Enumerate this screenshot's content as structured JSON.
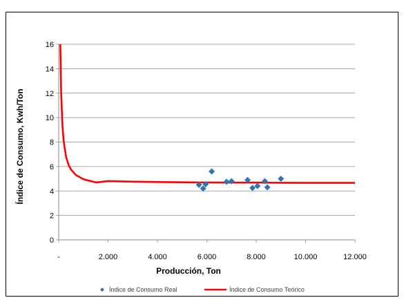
{
  "chart_data": {
    "type": "scatter",
    "title": "",
    "xlabel": "Producción, Ton",
    "ylabel": "Índice de Consumo, Kwh/Ton",
    "xlim": [
      0,
      12000
    ],
    "ylim": [
      0,
      16
    ],
    "x_ticks": [
      0,
      2000,
      4000,
      6000,
      8000,
      10000,
      12000
    ],
    "x_tick_labels": [
      "-",
      "2.000",
      "4.000",
      "6.000",
      "8.000",
      "10.000",
      "12.000"
    ],
    "y_ticks": [
      0,
      2,
      4,
      6,
      8,
      10,
      12,
      14,
      16
    ],
    "y_tick_labels": [
      "0",
      "2",
      "4",
      "6",
      "8",
      "10",
      "12",
      "14",
      "16"
    ],
    "grid": "horizontal",
    "legend_position": "bottom",
    "series": [
      {
        "name": "Índice de Consumo Real",
        "kind": "scatter",
        "marker": "diamond",
        "color": "#2E75B6",
        "points": [
          {
            "x": 5680,
            "y": 4.5
          },
          {
            "x": 5850,
            "y": 4.2
          },
          {
            "x": 5950,
            "y": 4.55
          },
          {
            "x": 6200,
            "y": 5.6
          },
          {
            "x": 6800,
            "y": 4.75
          },
          {
            "x": 7000,
            "y": 4.8
          },
          {
            "x": 7650,
            "y": 4.9
          },
          {
            "x": 7850,
            "y": 4.25
          },
          {
            "x": 8050,
            "y": 4.4
          },
          {
            "x": 8350,
            "y": 4.8
          },
          {
            "x": 8450,
            "y": 4.3
          },
          {
            "x": 9000,
            "y": 5.0
          }
        ]
      },
      {
        "name": "Índice de Consumo Teórico",
        "kind": "line",
        "color": "#FF0000",
        "points": [
          {
            "x": 65,
            "y": 16.0
          },
          {
            "x": 100,
            "y": 11.96
          },
          {
            "x": 150,
            "y": 9.37
          },
          {
            "x": 200,
            "y": 8.07
          },
          {
            "x": 300,
            "y": 6.78
          },
          {
            "x": 400,
            "y": 6.13
          },
          {
            "x": 500,
            "y": 5.74
          },
          {
            "x": 700,
            "y": 5.3
          },
          {
            "x": 1000,
            "y": 4.96
          },
          {
            "x": 1500,
            "y": 4.7
          },
          {
            "x": 2000,
            "y": 4.8
          },
          {
            "x": 3000,
            "y": 4.76
          },
          {
            "x": 4000,
            "y": 4.73
          },
          {
            "x": 5000,
            "y": 4.71
          },
          {
            "x": 6000,
            "y": 4.69
          },
          {
            "x": 7000,
            "y": 4.68
          },
          {
            "x": 8000,
            "y": 4.68
          },
          {
            "x": 9000,
            "y": 4.67
          },
          {
            "x": 10000,
            "y": 4.66
          },
          {
            "x": 11000,
            "y": 4.66
          },
          {
            "x": 12000,
            "y": 4.66
          }
        ]
      }
    ]
  }
}
